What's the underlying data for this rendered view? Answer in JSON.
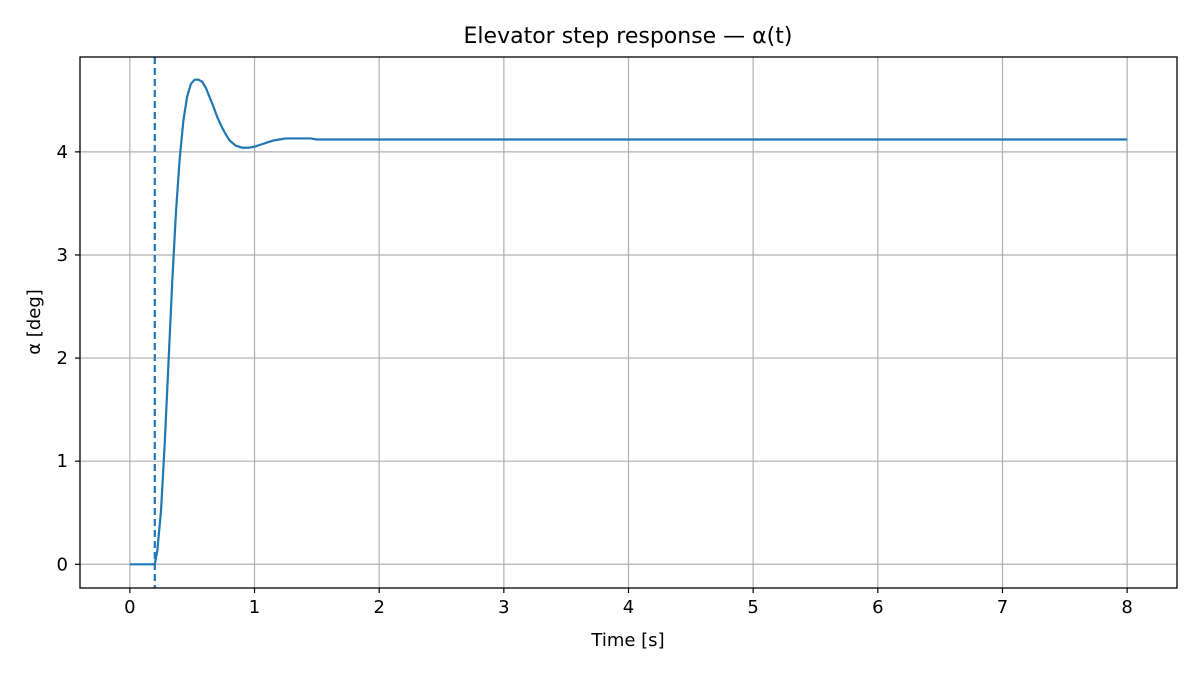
{
  "chart_data": {
    "type": "line",
    "title": "Elevator step response — α(t)",
    "xlabel": "Time [s]",
    "ylabel": "α [deg]",
    "xlim": [
      -0.4,
      8.4
    ],
    "ylim": [
      -0.23,
      4.92
    ],
    "xticks": [
      0,
      1,
      2,
      3,
      4,
      5,
      6,
      7,
      8
    ],
    "yticks": [
      0,
      1,
      2,
      3,
      4
    ],
    "grid": true,
    "line_color": "#1f77b4",
    "series": [
      {
        "x": [
          0,
          0.1,
          0.2,
          0.22,
          0.25,
          0.28,
          0.31,
          0.34,
          0.37,
          0.4,
          0.43,
          0.46,
          0.49,
          0.52,
          0.55,
          0.58,
          0.61,
          0.64,
          0.67,
          0.7,
          0.73,
          0.76,
          0.8,
          0.85,
          0.9,
          0.95,
          1.0,
          1.05,
          1.1,
          1.15,
          1.2,
          1.25,
          1.3,
          1.35,
          1.4,
          1.45,
          1.5,
          1.6,
          1.7,
          1.8,
          2.0,
          2.5,
          3.0,
          4.0,
          5.0,
          6.0,
          7.0,
          8.0
        ],
        "y": [
          0,
          0,
          0,
          0.13,
          0.52,
          1.18,
          1.96,
          2.74,
          3.42,
          3.94,
          4.31,
          4.54,
          4.66,
          4.7,
          4.7,
          4.68,
          4.62,
          4.53,
          4.44,
          4.34,
          4.26,
          4.19,
          4.11,
          4.06,
          4.04,
          4.04,
          4.05,
          4.07,
          4.09,
          4.11,
          4.12,
          4.13,
          4.13,
          4.13,
          4.13,
          4.13,
          4.12,
          4.12,
          4.12,
          4.12,
          4.12,
          4.12,
          4.12,
          4.12,
          4.12,
          4.12,
          4.12,
          4.12
        ]
      }
    ],
    "annotations": [
      {
        "type": "vline",
        "x": 0.2,
        "style": "dashed"
      }
    ]
  }
}
